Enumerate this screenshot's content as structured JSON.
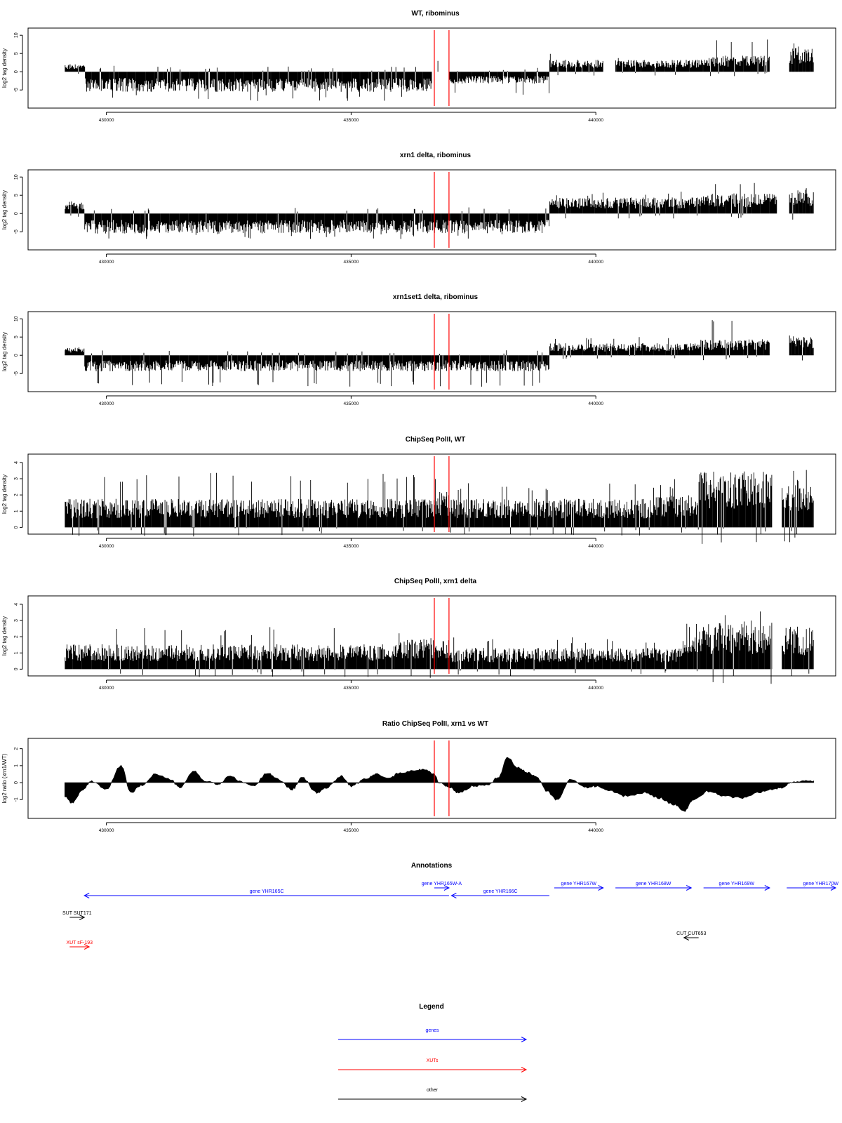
{
  "colors": {
    "axis": "#000000",
    "bars": "#000000",
    "marker": "#ff0000",
    "gene": "#0000ff",
    "xut": "#ff0000",
    "other": "#000000"
  },
  "chart_data": [
    {
      "type": "bar",
      "title": "WT, ribominus",
      "ylabel": "log2 tag density",
      "ylim": [
        -9,
        11
      ],
      "xlim": [
        428400,
        444900
      ],
      "xticks": [
        "430000",
        "435000",
        "440000"
      ],
      "yticks": [
        "-5",
        "0",
        "5",
        "10"
      ],
      "markers": [
        436700,
        437000
      ],
      "segments": [
        {
          "x": [
            429150,
            429550
          ],
          "value": 2,
          "spike": 4
        },
        {
          "x": [
            429550,
            436650
          ],
          "value": -5,
          "spike": -8
        },
        {
          "x": [
            436650,
            437000
          ],
          "value": 0,
          "spike": 3
        },
        {
          "x": [
            437000,
            439050
          ],
          "value": -3,
          "spike": -7
        },
        {
          "x": [
            439050,
            440150
          ],
          "value": 3,
          "spike": 5
        },
        {
          "x": [
            440150,
            440400
          ],
          "value": 0,
          "spike": 0
        },
        {
          "x": [
            440400,
            442100
          ],
          "value": 3,
          "spike": 4
        },
        {
          "x": [
            442100,
            443550
          ],
          "value": 4,
          "spike": 9
        },
        {
          "x": [
            443550,
            443950
          ],
          "value": 0,
          "spike": 0
        },
        {
          "x": [
            443950,
            444450
          ],
          "value": 6,
          "spike": 8
        }
      ]
    },
    {
      "type": "bar",
      "title": "xrn1 delta, ribominus",
      "ylabel": "log2 tag density",
      "ylim": [
        -9,
        11
      ],
      "xlim": [
        428400,
        444900
      ],
      "xticks": [
        "430000",
        "435000",
        "440000"
      ],
      "yticks": [
        "-5",
        "0",
        "5",
        "10"
      ],
      "markers": [
        436700,
        437000
      ],
      "segments": [
        {
          "x": [
            429150,
            429550
          ],
          "value": 3,
          "spike": 6
        },
        {
          "x": [
            429550,
            439050
          ],
          "value": -5,
          "spike": -7
        },
        {
          "x": [
            439050,
            442100
          ],
          "value": 4,
          "spike": 6
        },
        {
          "x": [
            442100,
            443700
          ],
          "value": 5,
          "spike": 10
        },
        {
          "x": [
            443700,
            443950
          ],
          "value": 0,
          "spike": 0
        },
        {
          "x": [
            443950,
            444450
          ],
          "value": 6,
          "spike": 8
        }
      ]
    },
    {
      "type": "bar",
      "title": "xrn1set1 delta, ribominus",
      "ylabel": "log2 tag density",
      "ylim": [
        -9,
        11
      ],
      "xlim": [
        428400,
        444900
      ],
      "xticks": [
        "430000",
        "435000",
        "440000"
      ],
      "yticks": [
        "-5",
        "0",
        "5",
        "10"
      ],
      "markers": [
        436700,
        437000
      ],
      "segments": [
        {
          "x": [
            429150,
            429550
          ],
          "value": 2,
          "spike": 7
        },
        {
          "x": [
            429550,
            439050
          ],
          "value": -4,
          "spike": -9
        },
        {
          "x": [
            439050,
            442100
          ],
          "value": 3,
          "spike": 5
        },
        {
          "x": [
            442100,
            443550
          ],
          "value": 4,
          "spike": 10
        },
        {
          "x": [
            443550,
            443950
          ],
          "value": 0,
          "spike": 0
        },
        {
          "x": [
            443950,
            444450
          ],
          "value": 5,
          "spike": 8
        }
      ]
    },
    {
      "type": "bar",
      "title": "ChipSeq PolII, WT",
      "ylabel": "log2 tag density",
      "ylim": [
        -0.2,
        4.3
      ],
      "xlim": [
        428400,
        444900
      ],
      "xticks": [
        "430000",
        "435000",
        "440000"
      ],
      "yticks": [
        "0",
        "1",
        "2",
        "3",
        "4"
      ],
      "markers": [
        436700,
        437000
      ],
      "segments": [
        {
          "x": [
            429150,
            436700
          ],
          "value": 1.6,
          "spike": 3.4
        },
        {
          "x": [
            436700,
            437000
          ],
          "value": 2.0,
          "spike": 3.1
        },
        {
          "x": [
            437000,
            441200
          ],
          "value": 1.6,
          "spike": 2.8
        },
        {
          "x": [
            441200,
            442100
          ],
          "value": 1.8,
          "spike": 3.0
        },
        {
          "x": [
            442100,
            443600
          ],
          "value": 3.2,
          "spike": 4.0
        },
        {
          "x": [
            443600,
            443800
          ],
          "value": 0.0,
          "spike": 0.0
        },
        {
          "x": [
            443800,
            444450
          ],
          "value": 2.8,
          "spike": 3.6
        }
      ]
    },
    {
      "type": "bar",
      "title": "ChipSeq PolII, xrn1 delta",
      "ylabel": "log2 tag density",
      "ylim": [
        -0.2,
        4.3
      ],
      "xlim": [
        428400,
        444900
      ],
      "xticks": [
        "430000",
        "435000",
        "440000"
      ],
      "yticks": [
        "0",
        "1",
        "2",
        "3",
        "4"
      ],
      "markers": [
        436700,
        437000
      ],
      "segments": [
        {
          "x": [
            429150,
            436000
          ],
          "value": 1.4,
          "spike": 2.6
        },
        {
          "x": [
            436000,
            437000
          ],
          "value": 1.8,
          "spike": 2.3
        },
        {
          "x": [
            437000,
            441800
          ],
          "value": 1.2,
          "spike": 2.0
        },
        {
          "x": [
            441800,
            443600
          ],
          "value": 2.6,
          "spike": 3.6
        },
        {
          "x": [
            443600,
            443800
          ],
          "value": 0.0,
          "spike": 0.0
        },
        {
          "x": [
            443800,
            444450
          ],
          "value": 2.4,
          "spike": 3.0
        }
      ]
    },
    {
      "type": "area",
      "title": "Ratio ChipSeq PolII, xrn1 vs WT",
      "ylabel": "log2 ratio (xrn1/WT)",
      "ylim": [
        -1.9,
        2.4
      ],
      "xlim": [
        428400,
        444900
      ],
      "xticks": [
        "430000",
        "435000",
        "440000"
      ],
      "yticks": [
        "-1",
        "0",
        "1",
        "2"
      ],
      "markers": [
        436700,
        437000
      ],
      "x": [
        429150,
        429300,
        429500,
        429700,
        430000,
        430300,
        430500,
        430700,
        431000,
        431300,
        431500,
        431800,
        432000,
        432300,
        432500,
        432800,
        433000,
        433300,
        433500,
        433800,
        434000,
        434300,
        434500,
        434800,
        435000,
        435300,
        435500,
        435800,
        436000,
        436300,
        436500,
        436700,
        436800,
        437000,
        437200,
        437500,
        437800,
        438000,
        438200,
        438400,
        438600,
        438800,
        439000,
        439200,
        439500,
        439800,
        440000,
        440300,
        440600,
        441000,
        441300,
        441600,
        441800,
        442000,
        442300,
        442600,
        443000,
        443300,
        443600,
        443800,
        444000,
        444200,
        444450
      ],
      "values": [
        -0.8,
        -1.2,
        -0.5,
        0.1,
        -0.4,
        1.0,
        -0.6,
        -0.2,
        0.5,
        0.2,
        -0.3,
        0.7,
        0.1,
        -0.1,
        0.4,
        0.0,
        -0.2,
        0.6,
        0.2,
        -0.4,
        0.3,
        -0.6,
        -0.3,
        0.4,
        -0.2,
        0.2,
        0.5,
        0.3,
        0.6,
        0.7,
        0.8,
        0.5,
        0.0,
        -0.3,
        -0.6,
        -0.2,
        -0.1,
        0.3,
        1.5,
        0.9,
        0.6,
        0.3,
        -0.5,
        -1.0,
        0.2,
        -0.3,
        -0.2,
        -0.5,
        -0.8,
        -0.6,
        -0.9,
        -1.3,
        -1.7,
        -1.0,
        -0.5,
        -0.8,
        -0.9,
        -0.6,
        -0.4,
        -0.3,
        0.0,
        0.1,
        0.1
      ]
    }
  ],
  "annotations": {
    "title": "Annotations",
    "features": [
      {
        "label": "gene YHR165C",
        "category": "gene",
        "start": 429550,
        "end": 437000,
        "strand": "-",
        "row": 1
      },
      {
        "label": "gene YHR165W-A",
        "category": "gene",
        "start": 436700,
        "end": 437000,
        "strand": "+",
        "row": 0
      },
      {
        "label": "gene YHR166C",
        "category": "gene",
        "start": 437050,
        "end": 439050,
        "strand": "-",
        "row": 1
      },
      {
        "label": "gene YHR167W",
        "category": "gene",
        "start": 439150,
        "end": 440150,
        "strand": "+",
        "row": 0
      },
      {
        "label": "gene YHR168W",
        "category": "gene",
        "start": 440400,
        "end": 441950,
        "strand": "+",
        "row": 0
      },
      {
        "label": "gene YHR169W",
        "category": "gene",
        "start": 442200,
        "end": 443550,
        "strand": "+",
        "row": 0
      },
      {
        "label": "gene YHR170W",
        "category": "gene",
        "start": 443900,
        "end": 444900,
        "strand": "+",
        "row": 0
      },
      {
        "label": "SUT SUT171",
        "category": "other",
        "start": 429250,
        "end": 429550,
        "strand": "+",
        "row": 2
      },
      {
        "label": "XUT sF-193",
        "category": "xut",
        "start": 429250,
        "end": 429650,
        "strand": "+",
        "row": 4
      },
      {
        "label": "CUT CUT653",
        "category": "other",
        "start": 441800,
        "end": 442100,
        "strand": "-",
        "row": 3
      }
    ]
  },
  "legend": {
    "title": "Legend",
    "items": [
      {
        "label": "genes",
        "category": "gene"
      },
      {
        "label": "XUTs",
        "category": "xut"
      },
      {
        "label": "other",
        "category": "other"
      }
    ]
  }
}
